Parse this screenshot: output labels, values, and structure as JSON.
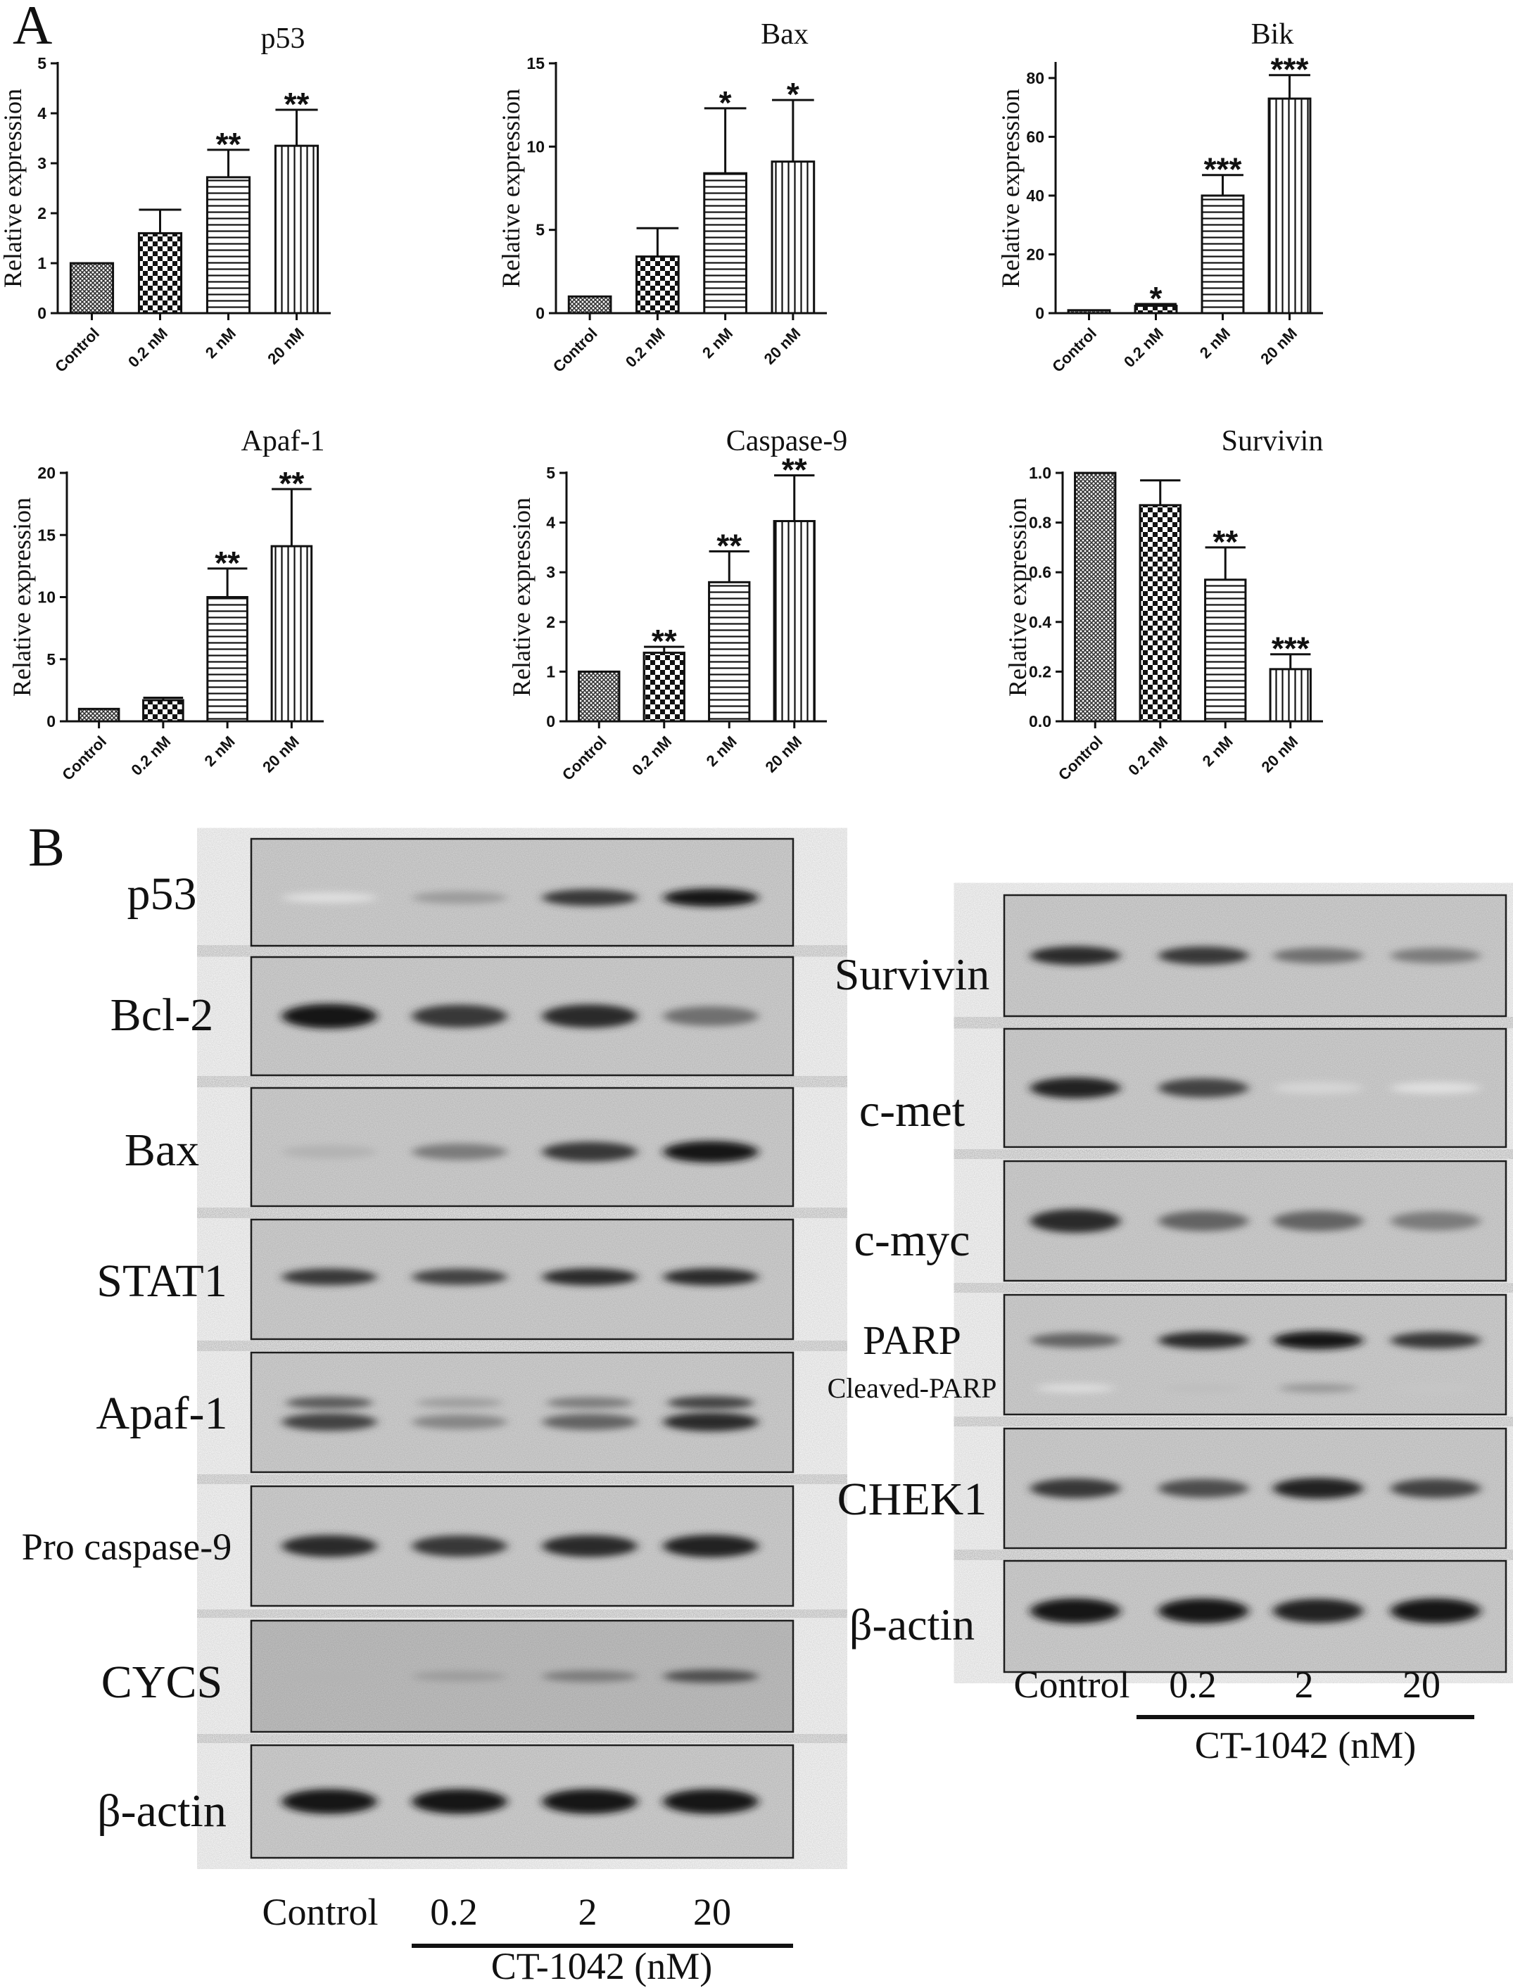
{
  "panels": {
    "a": "A",
    "b": "B"
  },
  "ylabel": "Relative expression",
  "chart_data": [
    {
      "type": "bar",
      "title": "p53",
      "ylabel": "Relative expression",
      "categories": [
        "Control",
        "0.2 nM",
        "2 nM",
        "20 nM"
      ],
      "values": [
        1.0,
        1.6,
        2.72,
        3.35
      ],
      "errors": [
        0,
        0.47,
        0.55,
        0.72
      ],
      "significance": [
        "",
        "",
        "**",
        "**"
      ],
      "ylim": [
        0,
        5
      ],
      "yticks": [
        "0",
        "1",
        "2",
        "3",
        "4",
        "5"
      ]
    },
    {
      "type": "bar",
      "title": "Bax",
      "ylabel": "Relative expression",
      "categories": [
        "Control",
        "0.2 nM",
        "2 nM",
        "20 nM"
      ],
      "values": [
        1.0,
        3.4,
        8.4,
        9.1
      ],
      "errors": [
        0,
        1.7,
        3.9,
        3.7
      ],
      "significance": [
        "",
        "",
        "*",
        "*"
      ],
      "ylim": [
        0,
        15
      ],
      "yticks": [
        "0",
        "5",
        "10",
        "15"
      ]
    },
    {
      "type": "bar",
      "title": "Bik",
      "ylabel": "Relative expression",
      "categories": [
        "Control",
        "0.2 nM",
        "2 nM",
        "20 nM"
      ],
      "values": [
        1.0,
        2.5,
        40,
        73
      ],
      "errors": [
        0,
        0.6,
        7,
        8
      ],
      "significance": [
        "",
        "*",
        "***",
        "***"
      ],
      "ylim": [
        0,
        85
      ],
      "yticks": [
        "0",
        "20",
        "40",
        "60",
        "80"
      ]
    },
    {
      "type": "bar",
      "title": "Apaf-1",
      "ylabel": "Relative expression",
      "categories": [
        "Control",
        "0.2 nM",
        "2 nM",
        "20 nM"
      ],
      "values": [
        1.0,
        1.7,
        10,
        14.1
      ],
      "errors": [
        0,
        0.2,
        2.3,
        4.6
      ],
      "significance": [
        "",
        "",
        "**",
        "**"
      ],
      "ylim": [
        0,
        20
      ],
      "yticks": [
        "0",
        "5",
        "10",
        "15",
        "20"
      ]
    },
    {
      "type": "bar",
      "title": "Caspase-9",
      "ylabel": "Relative expression",
      "categories": [
        "Control",
        "0.2 nM",
        "2 nM",
        "20 nM"
      ],
      "values": [
        1.0,
        1.38,
        2.8,
        4.03
      ],
      "errors": [
        0,
        0.12,
        0.62,
        0.92
      ],
      "significance": [
        "",
        "**",
        "**",
        "**"
      ],
      "ylim": [
        0,
        5
      ],
      "yticks": [
        "0",
        "1",
        "2",
        "3",
        "4",
        "5"
      ]
    },
    {
      "type": "bar",
      "title": "Survivin",
      "ylabel": "Relative expression",
      "categories": [
        "Control",
        "0.2 nM",
        "2 nM",
        "20 nM"
      ],
      "values": [
        1.0,
        0.87,
        0.57,
        0.21
      ],
      "errors": [
        0,
        0.1,
        0.13,
        0.06
      ],
      "significance": [
        "",
        "",
        "**",
        "***"
      ],
      "ylim": [
        0,
        1.0
      ],
      "yticks": [
        "0.0",
        "0.2",
        "0.4",
        "0.6",
        "0.8",
        "1.0"
      ]
    }
  ],
  "blots": {
    "left": {
      "labels": [
        "p53",
        "Bcl-2",
        "Bax",
        "STAT1",
        "Apaf-1",
        "Pro caspase-9",
        "CYCS",
        "β-actin"
      ],
      "lanes": [
        "Control",
        "0.2",
        "2",
        "20"
      ],
      "treatment": "CT-1042 (nM)",
      "band_intensity": [
        [
          0.05,
          0.35,
          0.8,
          0.95
        ],
        [
          0.95,
          0.8,
          0.85,
          0.55
        ],
        [
          0.25,
          0.5,
          0.8,
          0.95
        ],
        [
          0.8,
          0.75,
          0.85,
          0.85
        ],
        [
          0.75,
          0.45,
          0.6,
          0.85
        ],
        [
          0.85,
          0.8,
          0.85,
          0.9
        ],
        [
          0.25,
          0.35,
          0.5,
          0.7
        ],
        [
          0.95,
          0.95,
          0.95,
          0.95
        ]
      ]
    },
    "right": {
      "labels": [
        "Survivin",
        "c-met",
        "c-myc",
        "PARP",
        "CHEK1",
        "β-actin"
      ],
      "sublabel": "Cleaved-PARP",
      "lanes": [
        "Control",
        "0.2",
        "2",
        "20"
      ],
      "treatment": "CT-1042 (nM)",
      "band_intensity": [
        [
          0.85,
          0.8,
          0.55,
          0.5
        ],
        [
          0.9,
          0.75,
          0.1,
          0.05
        ],
        [
          0.85,
          0.6,
          0.6,
          0.5
        ],
        [
          0.6,
          0.85,
          0.95,
          0.8
        ],
        [
          0.8,
          0.7,
          0.9,
          0.75
        ],
        [
          0.95,
          0.95,
          0.9,
          0.95
        ]
      ]
    }
  }
}
